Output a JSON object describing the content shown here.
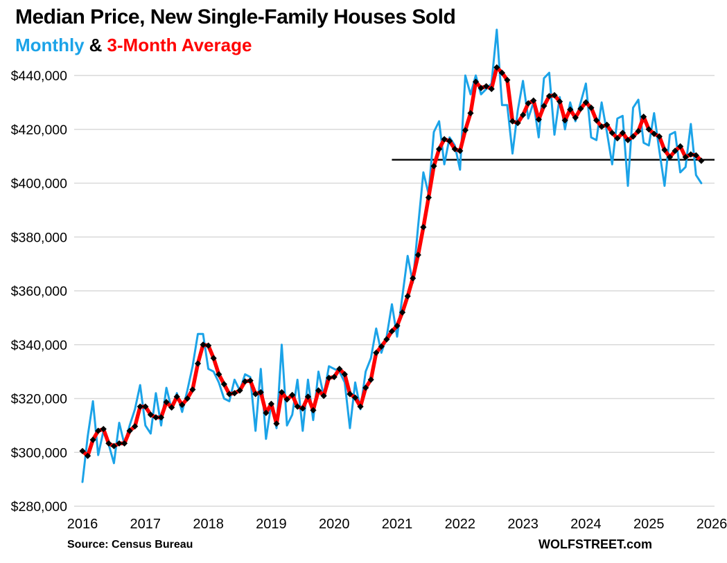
{
  "title": "Median Price, New Single-Family Houses Sold",
  "subtitle": {
    "monthly_label": "Monthly",
    "ampersand": "&",
    "average_label": "3-Month Average"
  },
  "source": "Source: Census Bureau",
  "branding": "WOLFSTREET.com",
  "colors": {
    "monthly_line": "#1BA3E8",
    "average_line": "#FF0000",
    "marker": "#000000",
    "grid": "#D9D9D9",
    "reference_line": "#000000",
    "text": "#000000"
  },
  "chart_data": {
    "type": "line",
    "start_month": "2016-01",
    "end_month": "2025-11",
    "x_tick_labels": [
      "2016",
      "2017",
      "2018",
      "2019",
      "2020",
      "2021",
      "2022",
      "2023",
      "2024",
      "2025",
      "2026"
    ],
    "y_ticks": [
      280000,
      300000,
      320000,
      340000,
      360000,
      380000,
      400000,
      420000,
      440000
    ],
    "y_range": [
      280000,
      457000
    ],
    "grid": "horizontal-only",
    "legend_position": "subtitle",
    "series": [
      {
        "name": "Monthly",
        "values": [
          289000,
          306000,
          319000,
          299000,
          308000,
          303000,
          296000,
          311000,
          303000,
          310000,
          316000,
          325000,
          310000,
          307000,
          322000,
          310000,
          324000,
          316000,
          322000,
          315000,
          323000,
          332000,
          344000,
          344000,
          331000,
          330000,
          326000,
          320000,
          319000,
          327000,
          323000,
          329000,
          328000,
          308000,
          331000,
          305000,
          318000,
          309000,
          340000,
          310000,
          314000,
          327000,
          308000,
          327000,
          312000,
          330000,
          321000,
          332000,
          331000,
          330000,
          326000,
          309000,
          326000,
          316000,
          330000,
          335000,
          346000,
          337000,
          343000,
          355000,
          343000,
          358000,
          373000,
          363000,
          384000,
          404000,
          396000,
          419000,
          423000,
          407000,
          417000,
          414000,
          405000,
          440000,
          433000,
          440000,
          433000,
          435000,
          437000,
          457000,
          429000,
          429000,
          411000,
          427000,
          438000,
          424000,
          430000,
          417000,
          439000,
          441000,
          418000,
          432000,
          420000,
          430000,
          423000,
          430000,
          437000,
          417000,
          416000,
          430000,
          419000,
          407000,
          424000,
          425000,
          399000,
          428000,
          431000,
          415000,
          414000,
          426000,
          412000,
          399000,
          418000,
          419000,
          404000,
          406000,
          422000,
          403000,
          400000
        ]
      },
      {
        "name": "3-Month Average",
        "derived": "trailing-3-month-average-of-Monthly",
        "seed_values": [
          300500,
          298700
        ]
      }
    ],
    "reference_line": {
      "value": 408700,
      "start_month": "2020-12"
    }
  }
}
